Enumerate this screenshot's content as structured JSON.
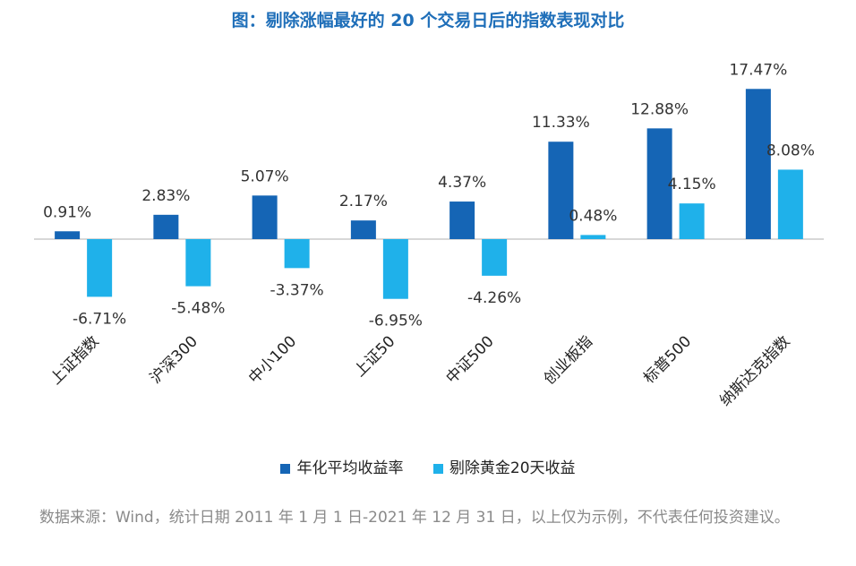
{
  "colors": {
    "series1": "#1565b5",
    "series2": "#1fb1ea",
    "title": "#1f6fb9",
    "axis": "#bfbfbf"
  },
  "chart_data": {
    "type": "bar",
    "title": "图：剔除涨幅最好的 20 个交易日后的指数表现对比",
    "categories": [
      "上证指数",
      "沪深300",
      "中小100",
      "上证50",
      "中证500",
      "创业板指",
      "标普500",
      "纳斯达克指数"
    ],
    "series": [
      {
        "name": "年化平均收益率",
        "values": [
          0.91,
          2.83,
          5.07,
          2.17,
          4.37,
          11.33,
          12.88,
          17.47
        ],
        "labels": [
          "0.91%",
          "2.83%",
          "5.07%",
          "2.17%",
          "4.37%",
          "11.33%",
          "12.88%",
          "17.47%"
        ]
      },
      {
        "name": "剔除黄金20天收益",
        "values": [
          -6.71,
          -5.48,
          -3.37,
          -6.95,
          -4.26,
          0.48,
          4.15,
          8.08
        ],
        "labels": [
          "-6.71%",
          "-5.48%",
          "-3.37%",
          "-6.95%",
          "-4.26%",
          "0.48%",
          "4.15%",
          "8.08%"
        ]
      }
    ],
    "xlabel": "",
    "ylabel": "",
    "ylim": [
      -8,
      18
    ],
    "grid": false,
    "legend": "bottom"
  },
  "source_text": "数据来源：Wind，统计日期 2011 年 1 月 1 日-2021 年 12 月 31 日，以上仅为示例，不代表任何投资建议。"
}
